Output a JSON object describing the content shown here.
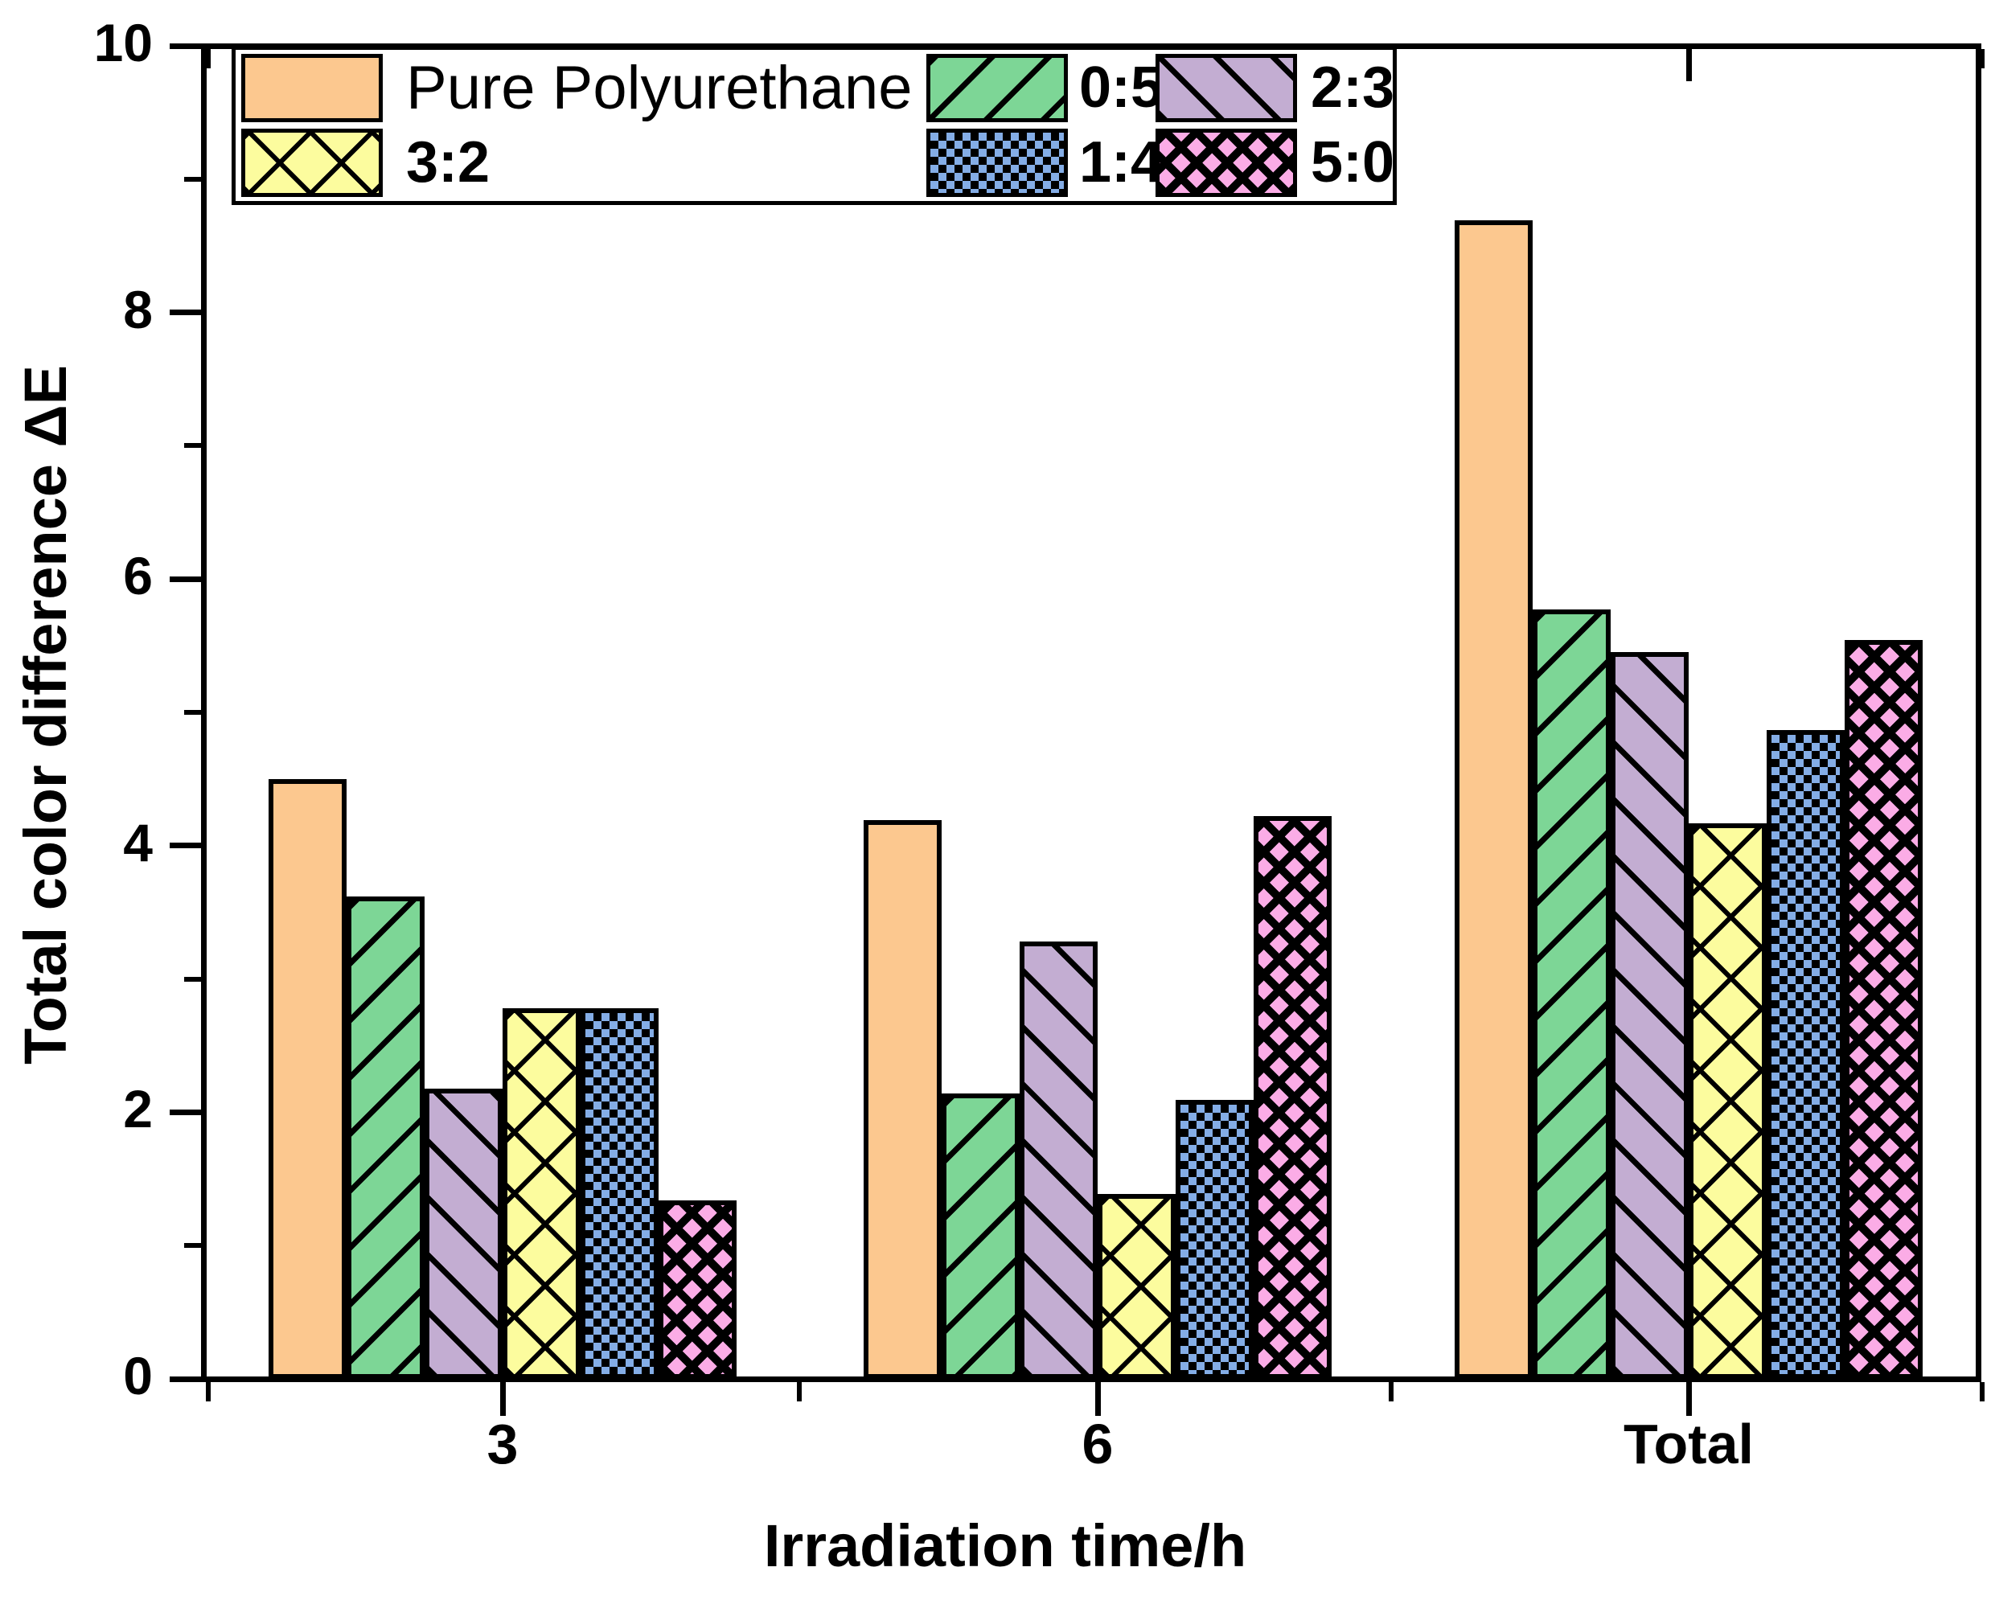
{
  "chart_data": {
    "type": "bar",
    "title": "",
    "categories": [
      "3",
      "6",
      "Total"
    ],
    "series": [
      {
        "name": "Pure Polyurethane",
        "color": "#FCC88F",
        "pattern": "solid",
        "values": [
          4.5,
          4.19,
          8.69
        ]
      },
      {
        "name": "0:5",
        "color": "#7DD696",
        "pattern": "diag-forward",
        "values": [
          3.62,
          2.14,
          5.77
        ]
      },
      {
        "name": "2:3",
        "color": "#C3ADD2",
        "pattern": "diag-backward",
        "values": [
          2.18,
          3.28,
          5.45
        ]
      },
      {
        "name": "3:2",
        "color": "#FCFC9E",
        "pattern": "crosshatch",
        "values": [
          2.78,
          1.39,
          4.17
        ]
      },
      {
        "name": "1:4",
        "color": "#84ADE6",
        "pattern": "checker",
        "values": [
          2.78,
          2.09,
          4.87
        ]
      },
      {
        "name": "5:0",
        "color": "#FBACE6",
        "pattern": "diamond-checker",
        "values": [
          1.34,
          4.22,
          5.54
        ]
      }
    ],
    "xlabel": "Irradiation time/h",
    "ylabel": "Total color difference ΔE",
    "ylim": [
      0,
      10
    ],
    "yticks": [
      0,
      2,
      4,
      6,
      8,
      10
    ],
    "y_minor_ticks": [
      1,
      3,
      5,
      7,
      9
    ],
    "legend_position": "top-left",
    "legend_rows": [
      [
        "Pure Polyurethane",
        "0:5",
        "2:3"
      ],
      [
        "3:2",
        "1:4",
        "5:0"
      ]
    ],
    "grid": false,
    "bar_edge_color": "#000000",
    "background_color": "#FFFFFF"
  }
}
